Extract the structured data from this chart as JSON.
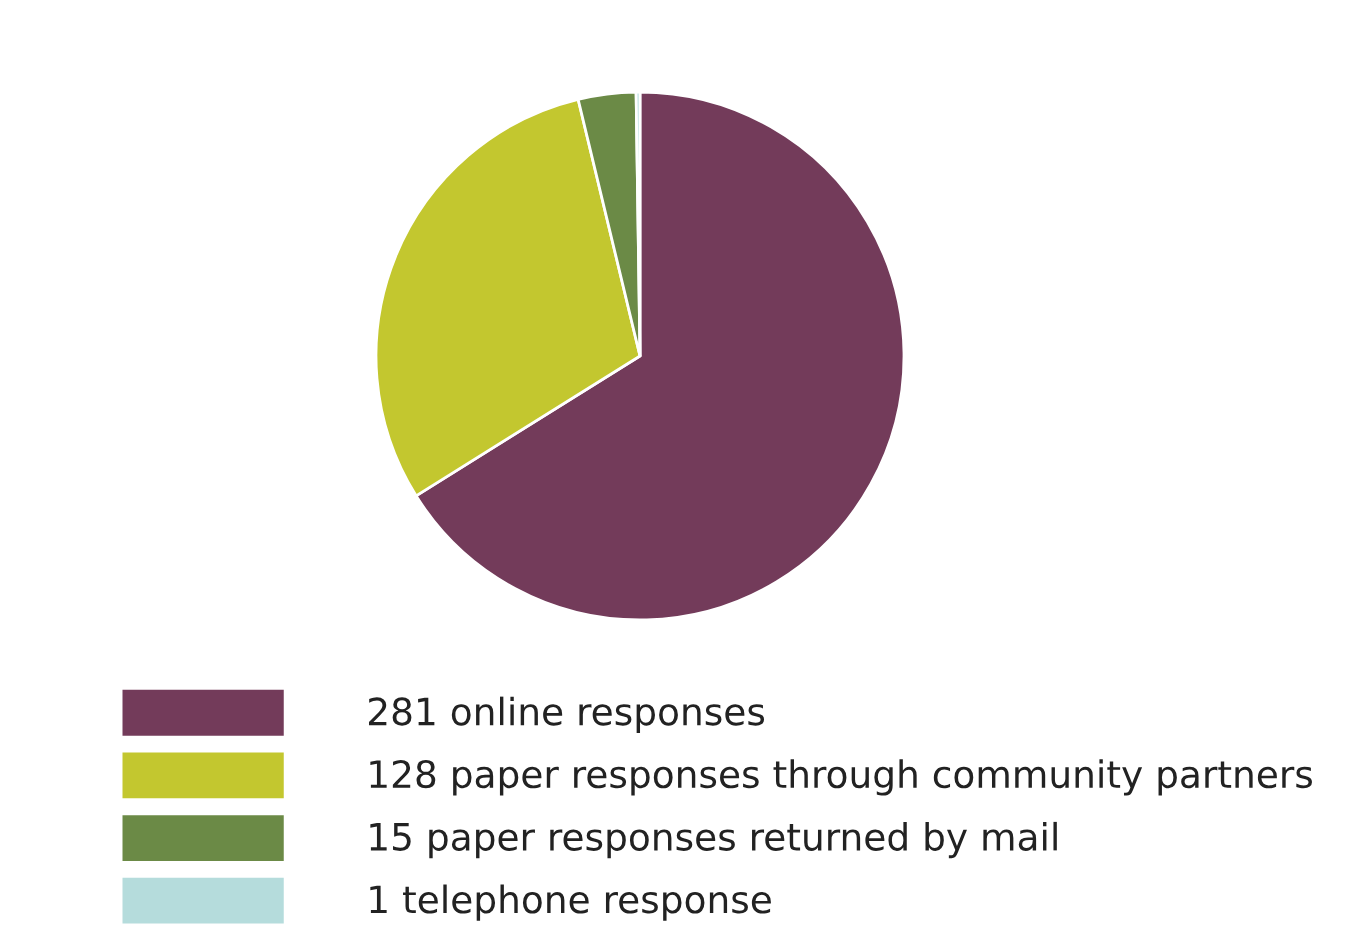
{
  "chart_data": {
    "type": "pie",
    "categories": [
      "281 online responses",
      "128 paper responses through community partners",
      "15 paper responses returned by mail",
      "1 telephone response"
    ],
    "values": [
      281,
      128,
      15,
      1
    ],
    "colors": [
      "#733b5a",
      "#c3c72f",
      "#6b8a46",
      "#b5dcdc"
    ],
    "legend": "bottom"
  }
}
